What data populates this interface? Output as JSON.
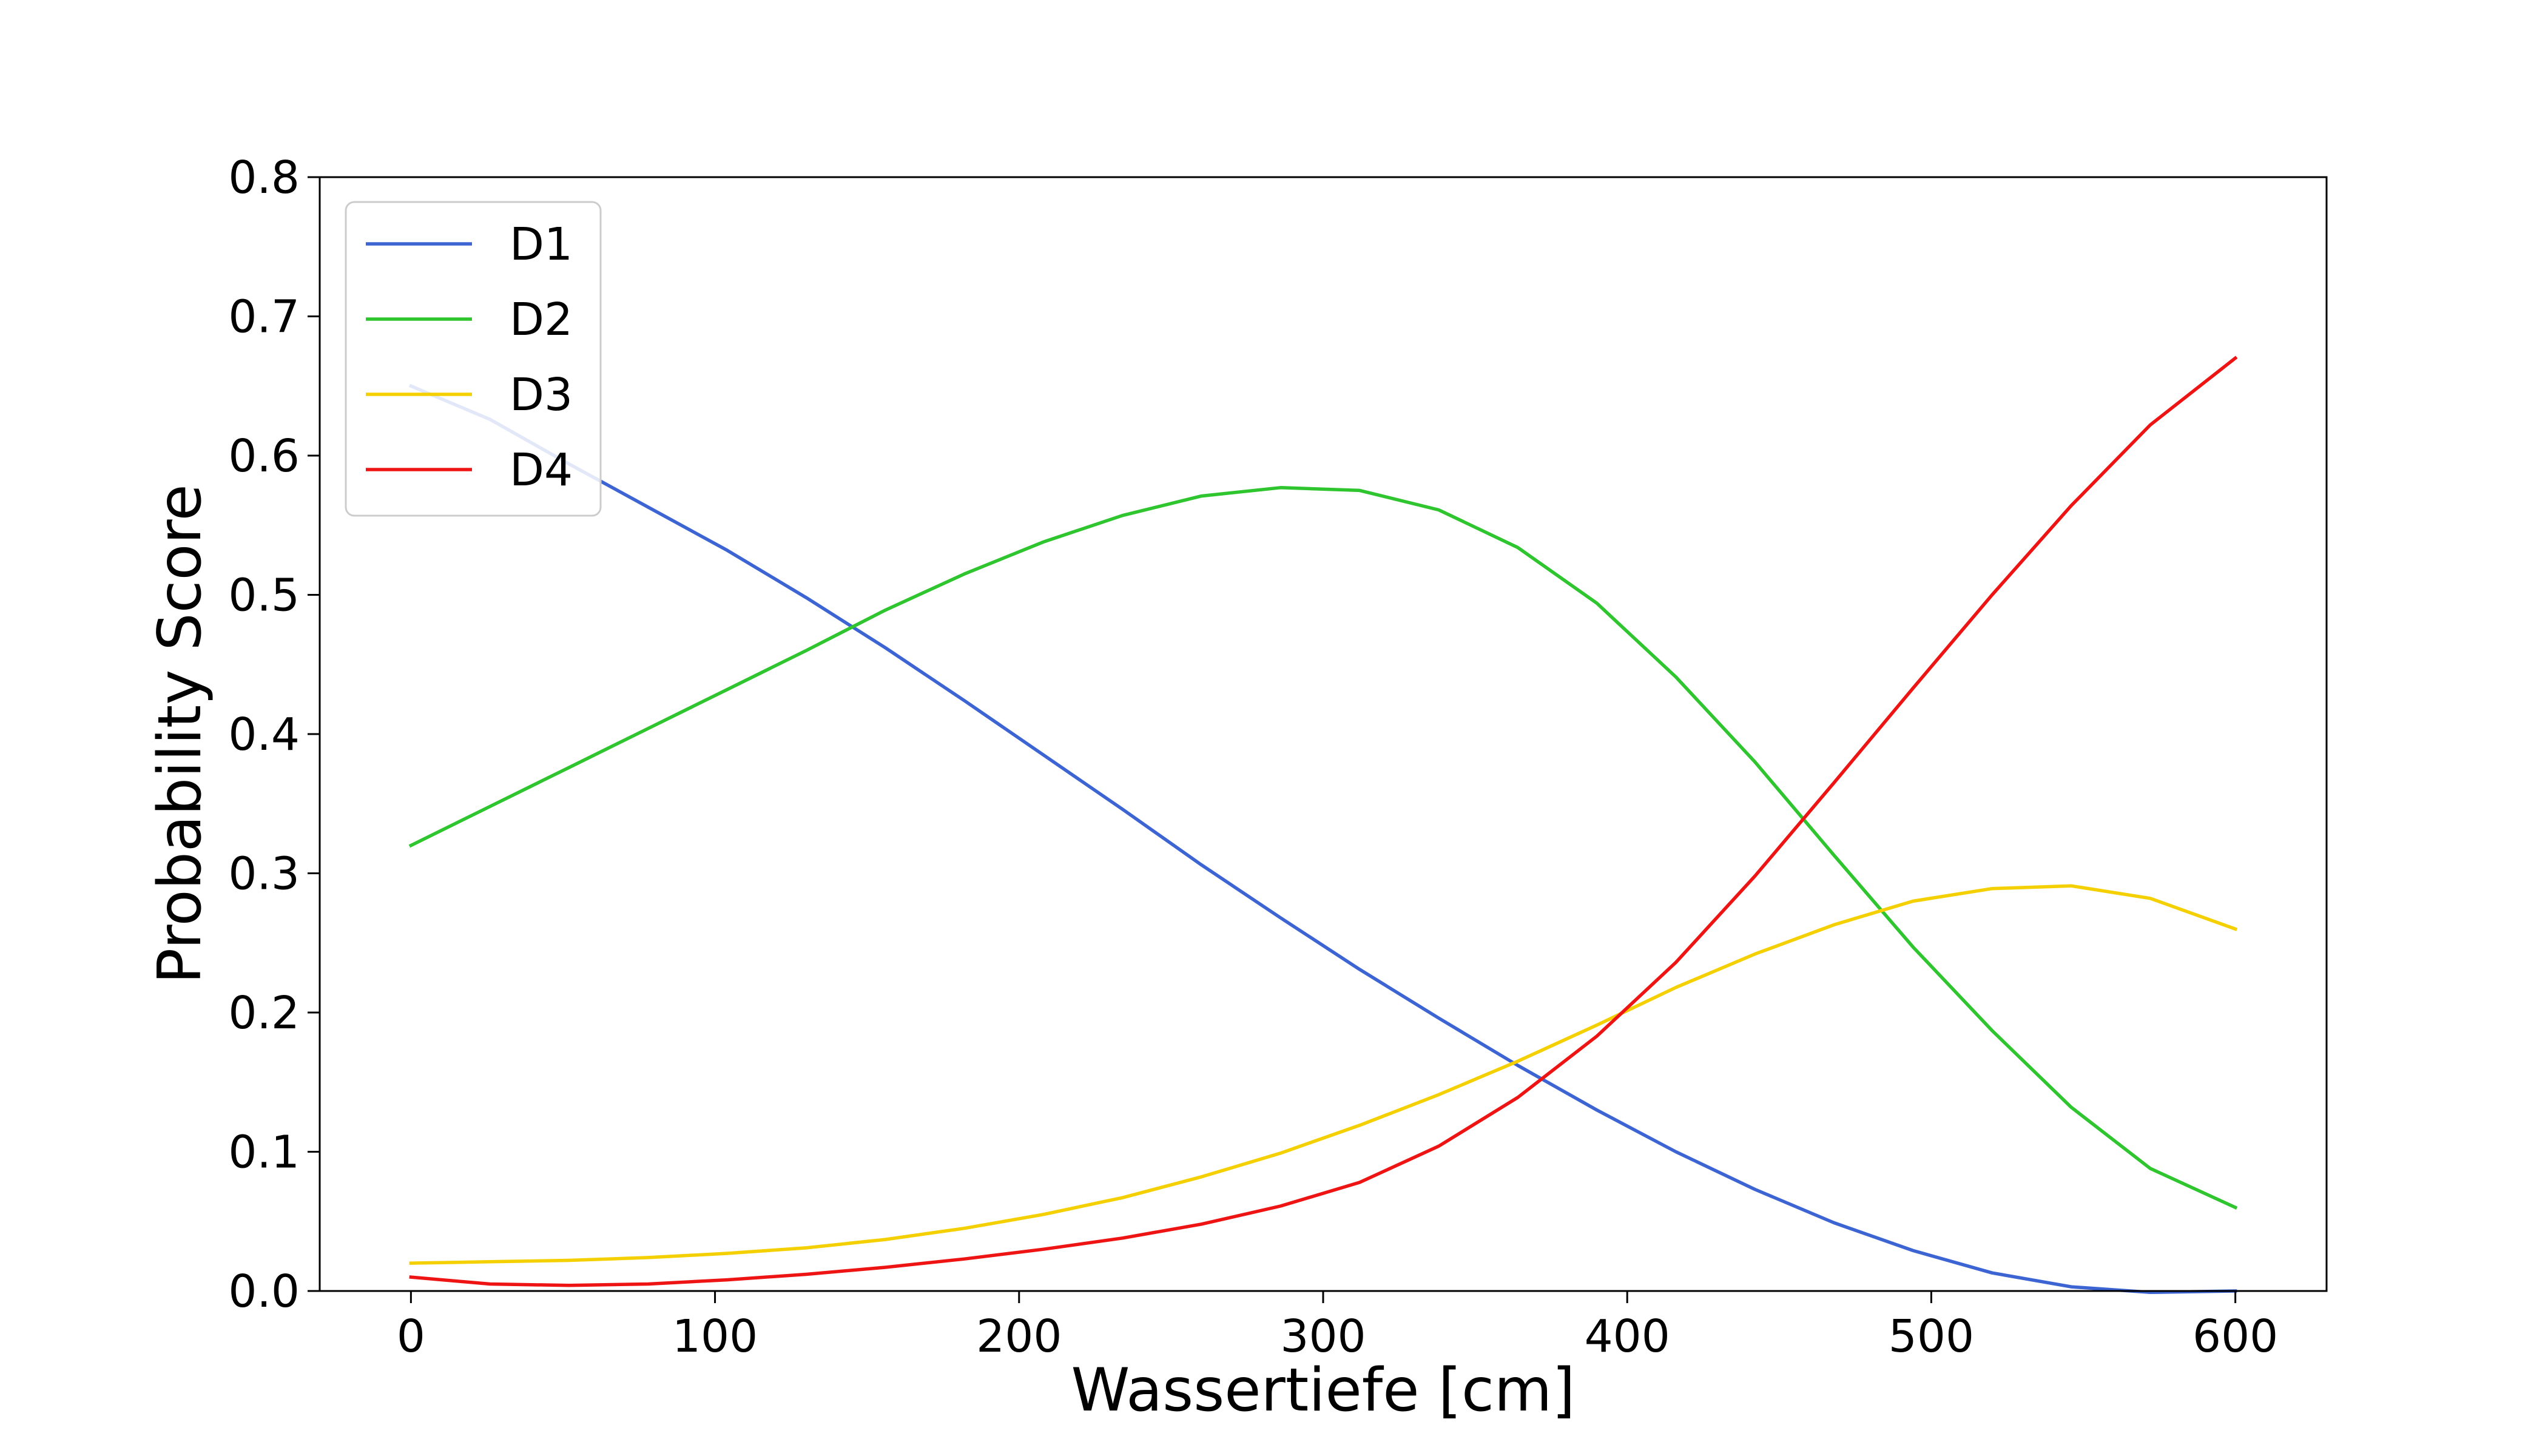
{
  "chart_data": {
    "type": "line",
    "title": "",
    "xlabel": "Wassertiefe [cm]",
    "ylabel": "Probability Score",
    "xlim": [
      -30,
      630
    ],
    "ylim": [
      0.0,
      0.8
    ],
    "xticks": [
      0,
      100,
      200,
      300,
      400,
      500,
      600
    ],
    "xtick_labels": [
      "0",
      "100",
      "200",
      "300",
      "400",
      "500",
      "600"
    ],
    "yticks": [
      0.0,
      0.1,
      0.2,
      0.3,
      0.4,
      0.5,
      0.6,
      0.7,
      0.8
    ],
    "ytick_labels": [
      "0.0",
      "0.1",
      "0.2",
      "0.3",
      "0.4",
      "0.5",
      "0.6",
      "0.7",
      "0.8"
    ],
    "grid": false,
    "legend_position": "top-left",
    "x": [
      0,
      26,
      52,
      78,
      104,
      130,
      156,
      182,
      208,
      234,
      260,
      286,
      312,
      338,
      364,
      390,
      416,
      442,
      468,
      494,
      520,
      546,
      572,
      600
    ],
    "series": [
      {
        "name": "D1",
        "color": "#3c64d2",
        "values": [
          0.65,
          0.626,
          0.594,
          0.563,
          0.532,
          0.498,
          0.462,
          0.424,
          0.385,
          0.346,
          0.306,
          0.268,
          0.231,
          0.196,
          0.162,
          0.13,
          0.1,
          0.073,
          0.049,
          0.029,
          0.013,
          0.003,
          -0.001,
          0.0
        ]
      },
      {
        "name": "D2",
        "color": "#2ec52e",
        "values": [
          0.32,
          0.348,
          0.376,
          0.404,
          0.432,
          0.46,
          0.489,
          0.515,
          0.538,
          0.557,
          0.571,
          0.577,
          0.575,
          0.561,
          0.534,
          0.494,
          0.441,
          0.38,
          0.313,
          0.247,
          0.187,
          0.132,
          0.088,
          0.06
        ]
      },
      {
        "name": "D3",
        "color": "#f5d000",
        "values": [
          0.02,
          0.021,
          0.022,
          0.024,
          0.027,
          0.031,
          0.037,
          0.045,
          0.055,
          0.067,
          0.082,
          0.099,
          0.119,
          0.141,
          0.165,
          0.191,
          0.218,
          0.242,
          0.263,
          0.28,
          0.289,
          0.291,
          0.282,
          0.26
        ]
      },
      {
        "name": "D4",
        "color": "#ee1414",
        "values": [
          0.01,
          0.005,
          0.004,
          0.005,
          0.008,
          0.012,
          0.017,
          0.023,
          0.03,
          0.038,
          0.048,
          0.061,
          0.078,
          0.104,
          0.139,
          0.183,
          0.236,
          0.298,
          0.365,
          0.433,
          0.5,
          0.564,
          0.622,
          0.67
        ]
      }
    ]
  }
}
